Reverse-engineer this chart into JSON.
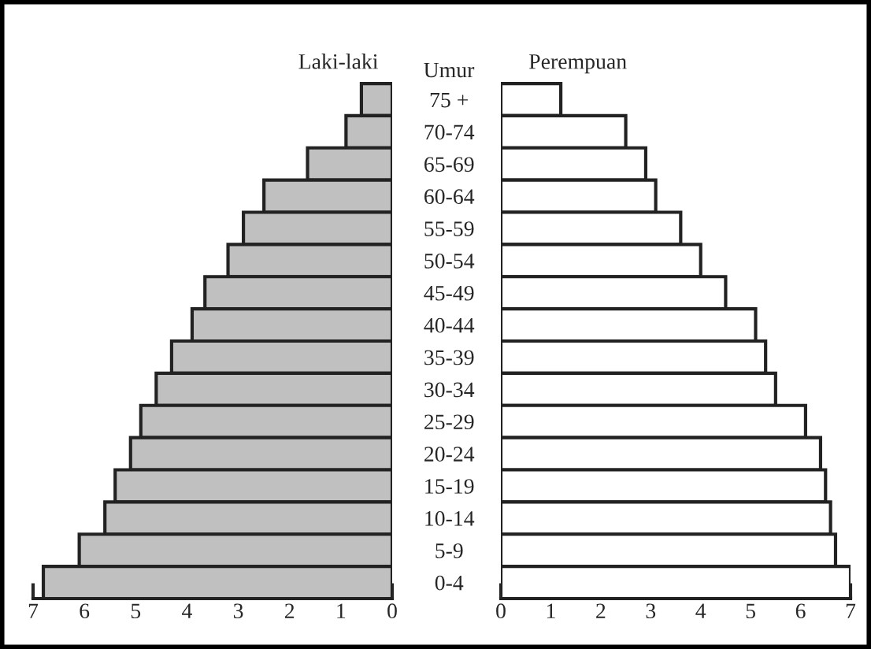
{
  "chart_data": [
    {
      "type": "bar",
      "orientation": "horizontal",
      "title": "Laki-laki",
      "ylabel": "Umur",
      "categories": [
        "75 +",
        "70-74",
        "65-69",
        "60-64",
        "55-59",
        "50-54",
        "45-49",
        "40-44",
        "35-39",
        "30-34",
        "25-29",
        "20-24",
        "15-19",
        "10-14",
        "5-9",
        "0-4"
      ],
      "values": [
        0.6,
        0.9,
        1.65,
        2.5,
        2.9,
        3.2,
        3.65,
        3.9,
        4.3,
        4.6,
        4.9,
        5.1,
        5.4,
        5.6,
        6.1,
        6.8
      ],
      "color": "#c0c0c0",
      "xlim": [
        7,
        0
      ],
      "xticks": [
        7,
        6,
        5,
        4,
        3,
        2,
        1,
        0
      ]
    },
    {
      "type": "bar",
      "orientation": "horizontal",
      "title": "Perempuan",
      "tick_labels": "x",
      "categories": [
        null,
        null,
        null,
        null,
        null,
        null,
        null,
        null,
        null,
        null,
        null,
        null,
        null,
        null,
        null,
        null
      ],
      "values": [
        1.2,
        2.5,
        2.9,
        3.1,
        3.6,
        4.0,
        4.5,
        5.1,
        5.3,
        5.5,
        6.1,
        6.4,
        6.5,
        6.6,
        6.7,
        7.0
      ],
      "color": "#ffffff",
      "xlim": [
        0,
        7
      ],
      "xticks": [
        0,
        1,
        2,
        3,
        4,
        5,
        6,
        7
      ]
    }
  ]
}
